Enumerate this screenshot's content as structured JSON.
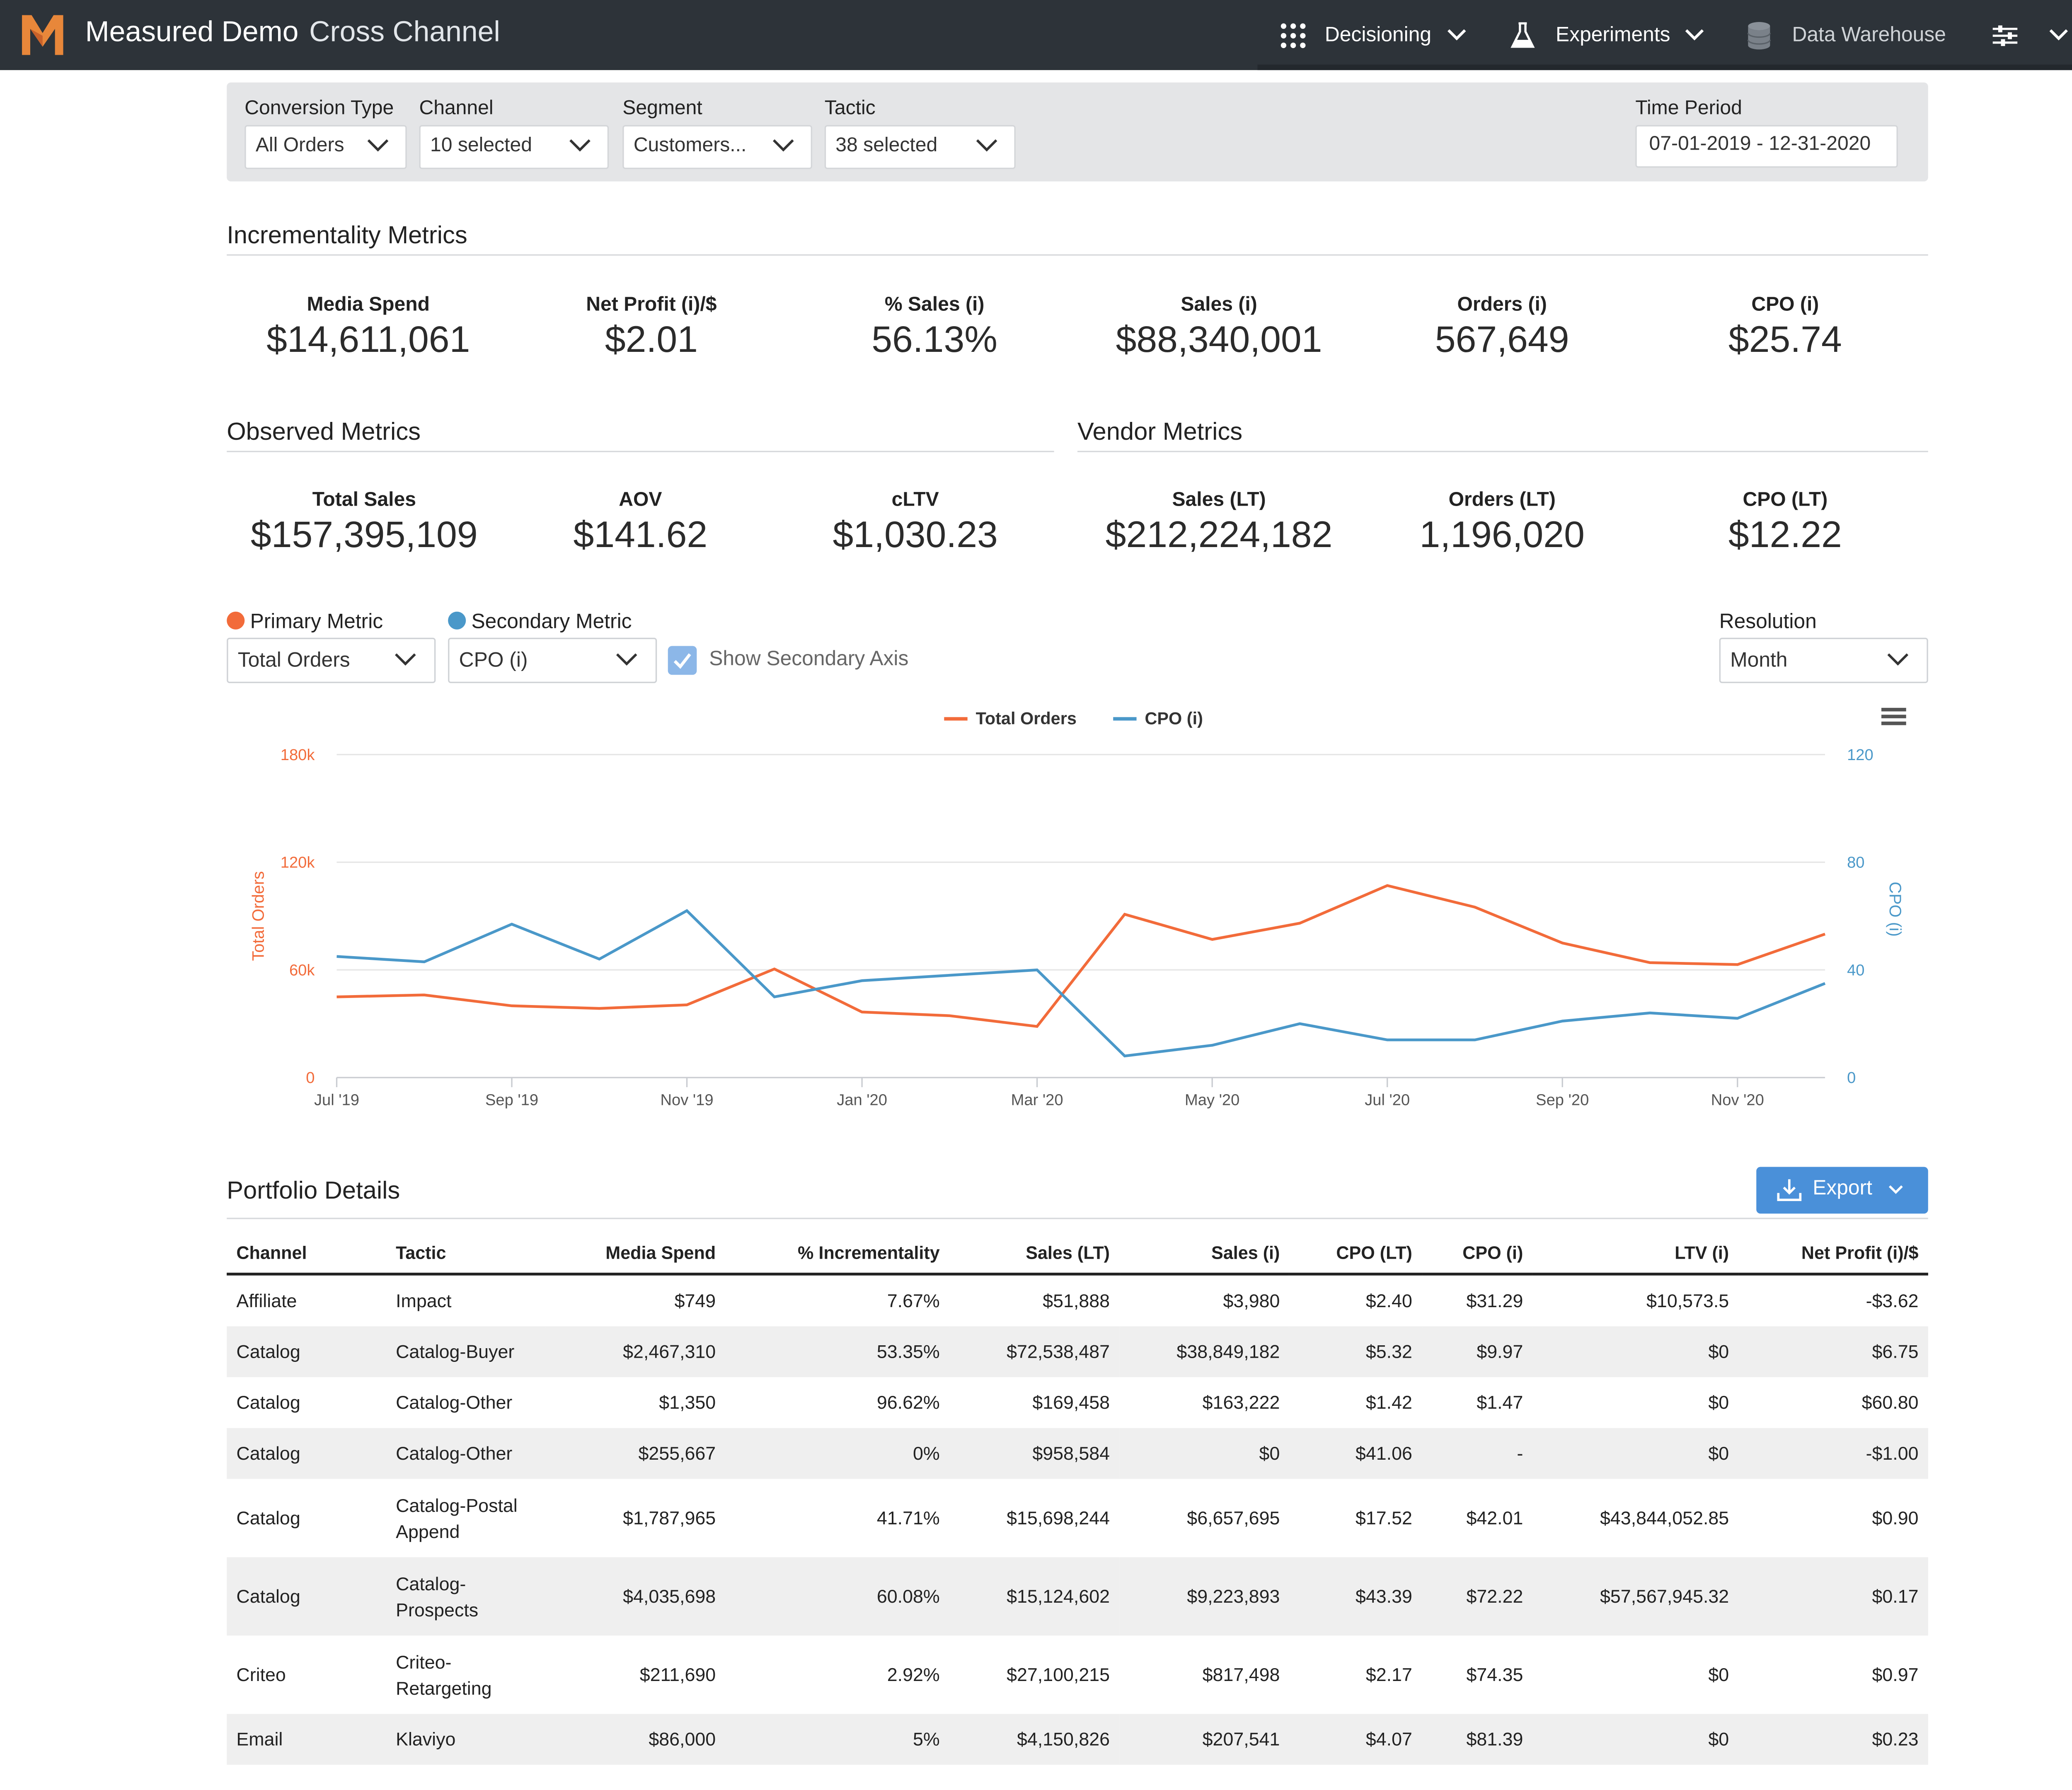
{
  "app": {
    "title": "Measured Demo",
    "subtitle": "Cross Channel"
  },
  "nav": {
    "decisioning": "Decisioning",
    "experiments": "Experiments",
    "data_warehouse": "Data Warehouse"
  },
  "filters": {
    "conversion_type": {
      "label": "Conversion Type",
      "value": "All Orders"
    },
    "channel": {
      "label": "Channel",
      "value": "10 selected"
    },
    "segment": {
      "label": "Segment",
      "value": "Customers..."
    },
    "tactic": {
      "label": "Tactic",
      "value": "38 selected"
    },
    "time_period": {
      "label": "Time Period",
      "value": "07-01-2019 - 12-31-2020"
    }
  },
  "incrementality": {
    "title": "Incrementality Metrics",
    "metrics": [
      {
        "label": "Media Spend",
        "value": "$14,611,061"
      },
      {
        "label": "Net Profit (i)/$",
        "value": "$2.01"
      },
      {
        "label": "% Sales (i)",
        "value": "56.13%"
      },
      {
        "label": "Sales (i)",
        "value": "$88,340,001"
      },
      {
        "label": "Orders (i)",
        "value": "567,649"
      },
      {
        "label": "CPO (i)",
        "value": "$25.74"
      }
    ]
  },
  "observed": {
    "title": "Observed Metrics",
    "metrics": [
      {
        "label": "Total Sales",
        "value": "$157,395,109"
      },
      {
        "label": "AOV",
        "value": "$141.62"
      },
      {
        "label": "cLTV",
        "value": "$1,030.23"
      }
    ]
  },
  "vendor": {
    "title": "Vendor Metrics",
    "metrics": [
      {
        "label": "Sales (LT)",
        "value": "$212,224,182"
      },
      {
        "label": "Orders (LT)",
        "value": "1,196,020"
      },
      {
        "label": "CPO (LT)",
        "value": "$12.22"
      }
    ]
  },
  "controls": {
    "primary_label": "Primary Metric",
    "primary_value": "Total Orders",
    "secondary_label": "Secondary Metric",
    "secondary_value": "CPO (i)",
    "show_secondary_axis": "Show Secondary Axis",
    "resolution_label": "Resolution",
    "resolution_value": "Month"
  },
  "colors": {
    "primary": "#f26b3a",
    "secondary": "#4a98c9",
    "export": "#4a90d9",
    "topbar": "#2d3339"
  },
  "chart_data": {
    "type": "line",
    "x": [
      "Jul '19",
      "Aug '19",
      "Sep '19",
      "Oct '19",
      "Nov '19",
      "Dec '19",
      "Jan '20",
      "Feb '20",
      "Mar '20",
      "Apr '20",
      "May '20",
      "Jun '20",
      "Jul '20",
      "Aug '20",
      "Sep '20",
      "Oct '20",
      "Nov '20",
      "Dec '20"
    ],
    "x_tick_labels": [
      "Jul '19",
      "Sep '19",
      "Nov '19",
      "Jan '20",
      "Mar '20",
      "May '20",
      "Jul '20",
      "Sep '20",
      "Nov '20"
    ],
    "series": [
      {
        "name": "Total Orders",
        "axis": "left",
        "color": "#f26b3a",
        "values": [
          45000,
          46000,
          40000,
          38500,
          40500,
          60500,
          36500,
          34500,
          28500,
          91000,
          77000,
          86000,
          107000,
          95000,
          75000,
          64000,
          63000,
          80000
        ]
      },
      {
        "name": "CPO (i)",
        "axis": "right",
        "color": "#4a98c9",
        "values": [
          45,
          43,
          57,
          44,
          62,
          30,
          36,
          38,
          40,
          8,
          12,
          20,
          14,
          14,
          21,
          24,
          22,
          35
        ]
      }
    ],
    "y_left": {
      "label": "Total Orders",
      "ticks": [
        "0",
        "60k",
        "120k",
        "180k"
      ],
      "range": [
        0,
        180000
      ]
    },
    "y_right": {
      "label": "CPO (i)",
      "ticks": [
        "0",
        "40",
        "80",
        "120"
      ],
      "range": [
        0,
        120
      ]
    },
    "legend": "top-center",
    "grid": true
  },
  "portfolio": {
    "title": "Portfolio Details",
    "export_label": "Export",
    "columns": [
      "Channel",
      "Tactic",
      "Media Spend",
      "% Incrementality",
      "Sales (LT)",
      "Sales (i)",
      "CPO (LT)",
      "CPO (i)",
      "LTV (i)",
      "Net Profit (i)/$"
    ],
    "rows": [
      [
        "Affiliate",
        "Impact",
        "$749",
        "7.67%",
        "$51,888",
        "$3,980",
        "$2.40",
        "$31.29",
        "$10,573.5",
        "-$3.62"
      ],
      [
        "Catalog",
        "Catalog-Buyer",
        "$2,467,310",
        "53.35%",
        "$72,538,487",
        "$38,849,182",
        "$5.32",
        "$9.97",
        "$0",
        "$6.75"
      ],
      [
        "Catalog",
        "Catalog-Other",
        "$1,350",
        "96.62%",
        "$169,458",
        "$163,222",
        "$1.42",
        "$1.47",
        "$0",
        "$60.80"
      ],
      [
        "Catalog",
        "Catalog-Other",
        "$255,667",
        "0%",
        "$958,584",
        "$0",
        "$41.06",
        "-",
        "$0",
        "-$1.00"
      ],
      [
        "Catalog",
        "Catalog-Postal Append",
        "$1,787,965",
        "41.71%",
        "$15,698,244",
        "$6,657,695",
        "$17.52",
        "$42.01",
        "$43,844,052.85",
        "$0.90"
      ],
      [
        "Catalog",
        "Catalog-Prospects",
        "$4,035,698",
        "60.08%",
        "$15,124,602",
        "$9,223,893",
        "$43.39",
        "$72.22",
        "$57,567,945.32",
        "$0.17"
      ],
      [
        "Criteo",
        "Criteo-Retargeting",
        "$211,690",
        "2.92%",
        "$27,100,215",
        "$817,498",
        "$2.17",
        "$74.35",
        "$0",
        "$0.97"
      ],
      [
        "Email",
        "Klaviyo",
        "$86,000",
        "5%",
        "$4,150,826",
        "$207,541",
        "$4.07",
        "$81.39",
        "$0",
        "$0.23"
      ]
    ]
  }
}
